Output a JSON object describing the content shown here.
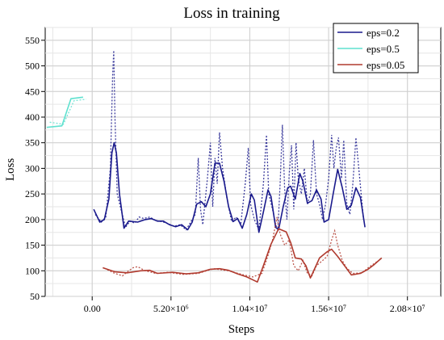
{
  "chart_data": {
    "type": "line",
    "title": "Loss in training",
    "xlabel": "Steps",
    "ylabel": "Loss",
    "xlim": [
      -3100000,
      23000000
    ],
    "ylim": [
      50,
      575
    ],
    "xticks": [
      0,
      5200000,
      10400000,
      15600000,
      20800000
    ],
    "xtick_labels": [
      "0.00",
      "5.20×10⁶",
      "1.04×10⁷",
      "1.56×10⁷",
      "2.08×10⁷"
    ],
    "yticks": [
      50,
      100,
      150,
      200,
      250,
      300,
      350,
      400,
      450,
      500,
      550
    ],
    "grid": true,
    "legend_position": "top-right",
    "series": [
      {
        "name": "eps=0.2",
        "color": "#1a1a8c",
        "smoothed": [
          [
            100000,
            220
          ],
          [
            500000,
            195
          ],
          [
            800000,
            200
          ],
          [
            1100000,
            240
          ],
          [
            1300000,
            330
          ],
          [
            1450000,
            350
          ],
          [
            1600000,
            330
          ],
          [
            1800000,
            250
          ],
          [
            2100000,
            183
          ],
          [
            2400000,
            197
          ],
          [
            3000000,
            195
          ],
          [
            3500000,
            200
          ],
          [
            3900000,
            202
          ],
          [
            4300000,
            197
          ],
          [
            4700000,
            197
          ],
          [
            5100000,
            190
          ],
          [
            5500000,
            186
          ],
          [
            5900000,
            190
          ],
          [
            6300000,
            180
          ],
          [
            6600000,
            195
          ],
          [
            6900000,
            230
          ],
          [
            7200000,
            235
          ],
          [
            7500000,
            225
          ],
          [
            7800000,
            250
          ],
          [
            8100000,
            310
          ],
          [
            8400000,
            310
          ],
          [
            8700000,
            275
          ],
          [
            9000000,
            225
          ],
          [
            9300000,
            196
          ],
          [
            9600000,
            202
          ],
          [
            9900000,
            183
          ],
          [
            10200000,
            210
          ],
          [
            10500000,
            250
          ],
          [
            10700000,
            238
          ],
          [
            11000000,
            175
          ],
          [
            11300000,
            215
          ],
          [
            11600000,
            258
          ],
          [
            11800000,
            245
          ],
          [
            12100000,
            185
          ],
          [
            12300000,
            180
          ],
          [
            12600000,
            225
          ],
          [
            12900000,
            262
          ],
          [
            13100000,
            265
          ],
          [
            13400000,
            240
          ],
          [
            13700000,
            290
          ],
          [
            13900000,
            275
          ],
          [
            14200000,
            232
          ],
          [
            14500000,
            237
          ],
          [
            14800000,
            258
          ],
          [
            15100000,
            240
          ],
          [
            15300000,
            195
          ],
          [
            15600000,
            200
          ],
          [
            15900000,
            250
          ],
          [
            16200000,
            298
          ],
          [
            16500000,
            262
          ],
          [
            16800000,
            220
          ],
          [
            17100000,
            228
          ],
          [
            17400000,
            262
          ],
          [
            17700000,
            243
          ],
          [
            18000000,
            185
          ]
        ],
        "raw": [
          [
            200000,
            210
          ],
          [
            600000,
            195
          ],
          [
            900000,
            205
          ],
          [
            1200000,
            300
          ],
          [
            1350000,
            480
          ],
          [
            1420000,
            530
          ],
          [
            1500000,
            400
          ],
          [
            1650000,
            250
          ],
          [
            1900000,
            220
          ],
          [
            2200000,
            185
          ],
          [
            2500000,
            197
          ],
          [
            2800000,
            193
          ],
          [
            3100000,
            205
          ],
          [
            3400000,
            202
          ],
          [
            3800000,
            205
          ],
          [
            4200000,
            198
          ],
          [
            4600000,
            196
          ],
          [
            5000000,
            192
          ],
          [
            5400000,
            187
          ],
          [
            5800000,
            190
          ],
          [
            6200000,
            180
          ],
          [
            6500000,
            195
          ],
          [
            6800000,
            210
          ],
          [
            7000000,
            320
          ],
          [
            7150000,
            220
          ],
          [
            7300000,
            190
          ],
          [
            7600000,
            280
          ],
          [
            7800000,
            350
          ],
          [
            7950000,
            225
          ],
          [
            8100000,
            320
          ],
          [
            8250000,
            270
          ],
          [
            8400000,
            370
          ],
          [
            8600000,
            300
          ],
          [
            8900000,
            240
          ],
          [
            9200000,
            196
          ],
          [
            9500000,
            205
          ],
          [
            9800000,
            190
          ],
          [
            10100000,
            270
          ],
          [
            10300000,
            340
          ],
          [
            10450000,
            230
          ],
          [
            10700000,
            200
          ],
          [
            11000000,
            180
          ],
          [
            11300000,
            270
          ],
          [
            11500000,
            365
          ],
          [
            11650000,
            250
          ],
          [
            11900000,
            220
          ],
          [
            12100000,
            190
          ],
          [
            12250000,
            180
          ],
          [
            12400000,
            270
          ],
          [
            12550000,
            385
          ],
          [
            12700000,
            260
          ],
          [
            12850000,
            200
          ],
          [
            13000000,
            290
          ],
          [
            13150000,
            345
          ],
          [
            13300000,
            220
          ],
          [
            13450000,
            350
          ],
          [
            13600000,
            280
          ],
          [
            13800000,
            250
          ],
          [
            14000000,
            300
          ],
          [
            14200000,
            230
          ],
          [
            14400000,
            250
          ],
          [
            14600000,
            355
          ],
          [
            14800000,
            250
          ],
          [
            15000000,
            230
          ],
          [
            15200000,
            200
          ],
          [
            15400000,
            230
          ],
          [
            15600000,
            280
          ],
          [
            15800000,
            365
          ],
          [
            15950000,
            300
          ],
          [
            16100000,
            340
          ],
          [
            16250000,
            360
          ],
          [
            16450000,
            280
          ],
          [
            16600000,
            355
          ],
          [
            16800000,
            230
          ],
          [
            17000000,
            210
          ],
          [
            17200000,
            270
          ],
          [
            17400000,
            360
          ],
          [
            17650000,
            280
          ],
          [
            17900000,
            200
          ]
        ]
      },
      {
        "name": "eps=0.5",
        "color": "#5fe1cf",
        "smoothed": [
          [
            -3000000,
            380
          ],
          [
            -2000000,
            383
          ],
          [
            -1400000,
            436
          ],
          [
            -600000,
            439
          ]
        ],
        "raw": [
          [
            -2800000,
            390
          ],
          [
            -1900000,
            386
          ],
          [
            -1200000,
            432
          ],
          [
            -400000,
            435
          ]
        ]
      },
      {
        "name": "eps=0.05",
        "color": "#b03a2e",
        "smoothed": [
          [
            700000,
            106
          ],
          [
            1500000,
            98
          ],
          [
            2300000,
            96
          ],
          [
            3200000,
            100
          ],
          [
            3800000,
            101
          ],
          [
            4300000,
            95
          ],
          [
            5300000,
            97
          ],
          [
            6200000,
            94
          ],
          [
            7000000,
            96
          ],
          [
            7800000,
            103
          ],
          [
            8400000,
            104
          ],
          [
            9000000,
            101
          ],
          [
            9600000,
            94
          ],
          [
            10200000,
            88
          ],
          [
            10900000,
            78
          ],
          [
            11300000,
            110
          ],
          [
            11800000,
            152
          ],
          [
            12300000,
            182
          ],
          [
            12800000,
            176
          ],
          [
            13100000,
            155
          ],
          [
            13400000,
            125
          ],
          [
            13800000,
            123
          ],
          [
            14100000,
            110
          ],
          [
            14400000,
            86
          ],
          [
            15000000,
            125
          ],
          [
            15500000,
            137
          ],
          [
            15800000,
            142
          ],
          [
            16200000,
            128
          ],
          [
            16600000,
            112
          ],
          [
            17100000,
            92
          ],
          [
            17700000,
            95
          ],
          [
            18200000,
            103
          ],
          [
            18600000,
            112
          ],
          [
            19100000,
            125
          ]
        ],
        "raw": [
          [
            1000000,
            102
          ],
          [
            1400000,
            96
          ],
          [
            2000000,
            90
          ],
          [
            2400000,
            100
          ],
          [
            2700000,
            106
          ],
          [
            3000000,
            108
          ],
          [
            3500000,
            100
          ],
          [
            4200000,
            95
          ],
          [
            5000000,
            97
          ],
          [
            6000000,
            93
          ],
          [
            7000000,
            95
          ],
          [
            8000000,
            104
          ],
          [
            9000000,
            100
          ],
          [
            10000000,
            92
          ],
          [
            10600000,
            88
          ],
          [
            11200000,
            95
          ],
          [
            11600000,
            130
          ],
          [
            11900000,
            160
          ],
          [
            12200000,
            205
          ],
          [
            12400000,
            172
          ],
          [
            12700000,
            150
          ],
          [
            13000000,
            160
          ],
          [
            13300000,
            110
          ],
          [
            13600000,
            100
          ],
          [
            13900000,
            120
          ],
          [
            14200000,
            95
          ],
          [
            14500000,
            90
          ],
          [
            14800000,
            110
          ],
          [
            15200000,
            120
          ],
          [
            15500000,
            128
          ],
          [
            15800000,
            160
          ],
          [
            16000000,
            178
          ],
          [
            16200000,
            150
          ],
          [
            16500000,
            120
          ],
          [
            16800000,
            105
          ],
          [
            17200000,
            95
          ],
          [
            17800000,
            96
          ],
          [
            18300000,
            108
          ],
          [
            18800000,
            118
          ]
        ]
      }
    ]
  }
}
